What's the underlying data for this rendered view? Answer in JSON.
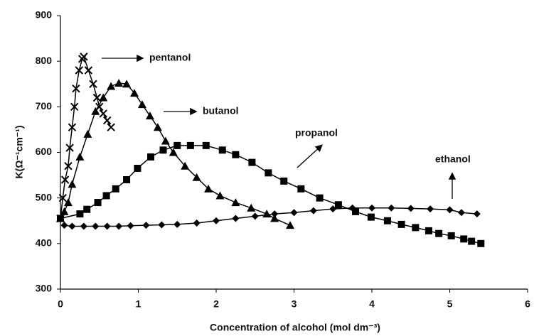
{
  "chart_data": {
    "type": "line",
    "xlabel": "Concentration of alcohol (mol dm⁻³)",
    "ylabel": "K(Ω⁻¹cm⁻¹)",
    "xlim": [
      0,
      6
    ],
    "xticks": [
      0,
      1,
      2,
      3,
      4,
      5,
      6
    ],
    "ylim": [
      300,
      900
    ],
    "yticks": [
      300,
      400,
      500,
      600,
      700,
      800,
      900
    ],
    "grid": false,
    "series": [
      {
        "name": "ethanol",
        "color": "#000000",
        "marker": "diamond",
        "x": [
          0.05,
          0.15,
          0.3,
          0.45,
          0.6,
          0.75,
          0.9,
          1.1,
          1.3,
          1.5,
          1.75,
          2,
          2.25,
          2.5,
          2.75,
          3,
          3.25,
          3.5,
          3.75,
          4,
          4.25,
          4.5,
          4.75,
          5,
          5.15,
          5.35
        ],
        "values": [
          440,
          438,
          438,
          438,
          438,
          438,
          439,
          440,
          441,
          442,
          445,
          450,
          455,
          460,
          465,
          468,
          472,
          476,
          478,
          478,
          478,
          477,
          476,
          474,
          468,
          465
        ]
      },
      {
        "name": "propanol",
        "color": "#000000",
        "marker": "square",
        "x": [
          0,
          0.25,
          0.34,
          0.48,
          0.59,
          0.71,
          0.85,
          0.99,
          1.16,
          1.32,
          1.5,
          1.67,
          1.87,
          2.08,
          2.25,
          2.46,
          2.67,
          2.87,
          3.09,
          3.33,
          3.57,
          3.79,
          3.99,
          4.2,
          4.38,
          4.56,
          4.73,
          4.86,
          5.02,
          5.18,
          5.28,
          5.4
        ],
        "values": [
          455,
          465,
          475,
          490,
          505,
          520,
          540,
          565,
          590,
          605,
          615,
          615,
          615,
          605,
          595,
          578,
          555,
          537,
          520,
          500,
          485,
          470,
          458,
          450,
          442,
          435,
          428,
          422,
          417,
          410,
          405,
          400
        ]
      },
      {
        "name": "butanol",
        "color": "#000000",
        "marker": "triangle",
        "x": [
          0,
          0.05,
          0.1,
          0.15,
          0.25,
          0.35,
          0.45,
          0.55,
          0.65,
          0.75,
          0.85,
          0.95,
          1.05,
          1.15,
          1.25,
          1.35,
          1.45,
          1.6,
          1.75,
          1.9,
          2.05,
          2.25,
          2.45,
          2.65,
          2.75,
          2.95
        ],
        "values": [
          455,
          470,
          490,
          530,
          590,
          640,
          690,
          720,
          745,
          752,
          750,
          730,
          705,
          680,
          655,
          625,
          600,
          570,
          545,
          520,
          505,
          490,
          478,
          465,
          455,
          440
        ]
      },
      {
        "name": "pentanol",
        "color": "#000000",
        "marker": "x",
        "x": [
          0,
          0.03,
          0.06,
          0.1,
          0.12,
          0.15,
          0.18,
          0.2,
          0.24,
          0.28,
          0.3,
          0.36,
          0.42,
          0.47,
          0.5,
          0.55,
          0.6,
          0.65
        ],
        "values": [
          455,
          500,
          540,
          570,
          610,
          655,
          700,
          740,
          780,
          805,
          810,
          780,
          750,
          720,
          700,
          685,
          670,
          655
        ]
      }
    ]
  }
}
